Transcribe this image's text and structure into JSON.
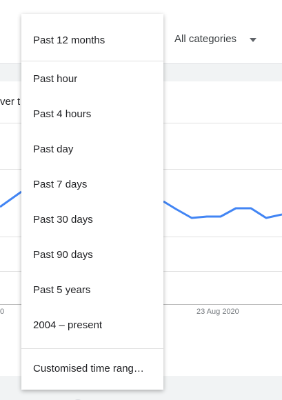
{
  "background": {
    "category_filter": "All categories",
    "card_title_fragment": "ver t",
    "x_axis_labels": [
      "0",
      "23 Aug 2020"
    ]
  },
  "dropdown": {
    "selected": "Past 12 months",
    "options": [
      "Past hour",
      "Past 4 hours",
      "Past day",
      "Past 7 days",
      "Past 30 days",
      "Past 90 days",
      "Past 5 years",
      "2004 – present"
    ],
    "custom_option": "Customised time rang…"
  }
}
